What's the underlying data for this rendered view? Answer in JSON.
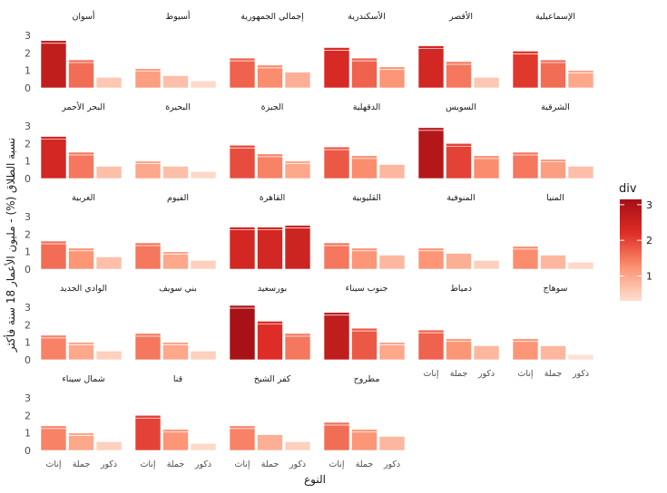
{
  "chart_data": {
    "type": "bar",
    "facet": true,
    "categories": [
      "إناث",
      "جملة",
      "ذكور"
    ],
    "ylabel": "نسبة الطلاق (%) - مليون الأعمار 18 سنة فأكثر",
    "xlabel": "النوع",
    "y_ticks": [
      "0",
      "1",
      "2",
      "3"
    ],
    "ylim": [
      0,
      3.1
    ],
    "legend": {
      "title": "div",
      "ticks": [
        "1",
        "2",
        "3"
      ],
      "range": [
        0.3,
        3.15
      ],
      "colors": [
        "#fee0d2",
        "#fc9272",
        "#de2d26",
        "#a50f15"
      ],
      "position": "right"
    },
    "panels": [
      {
        "name": "أسوان",
        "values": [
          2.7,
          1.6,
          0.6
        ]
      },
      {
        "name": "أسيوط",
        "values": [
          1.1,
          0.7,
          0.4
        ]
      },
      {
        "name": "إجمالي الجمهورية",
        "values": [
          1.7,
          1.3,
          0.9
        ]
      },
      {
        "name": "الأسكندرية",
        "values": [
          2.3,
          1.7,
          1.2
        ]
      },
      {
        "name": "الأقصر",
        "values": [
          2.4,
          1.5,
          0.6
        ]
      },
      {
        "name": "الإسماعيلية",
        "values": [
          2.1,
          1.6,
          1.0
        ]
      },
      {
        "name": "البحر الأحمر",
        "values": [
          2.4,
          1.5,
          0.7
        ]
      },
      {
        "name": "البحيرة",
        "values": [
          1.0,
          0.7,
          0.4
        ]
      },
      {
        "name": "الجيزة",
        "values": [
          1.9,
          1.4,
          1.0
        ]
      },
      {
        "name": "الدقهلية",
        "values": [
          1.8,
          1.3,
          0.8
        ]
      },
      {
        "name": "السويس",
        "values": [
          2.9,
          2.0,
          1.3
        ]
      },
      {
        "name": "الشرقية",
        "values": [
          1.5,
          1.1,
          0.7
        ]
      },
      {
        "name": "الغربية",
        "values": [
          1.6,
          1.2,
          0.7
        ]
      },
      {
        "name": "الفيوم",
        "values": [
          1.5,
          1.0,
          0.5
        ]
      },
      {
        "name": "القاهرة",
        "values": [
          2.4,
          2.4,
          2.5
        ]
      },
      {
        "name": "القليوبية",
        "values": [
          1.5,
          1.2,
          0.8
        ]
      },
      {
        "name": "المنوفية",
        "values": [
          1.2,
          0.9,
          0.5
        ]
      },
      {
        "name": "المنيا",
        "values": [
          1.3,
          0.8,
          0.4
        ]
      },
      {
        "name": "الوادي الجديد",
        "values": [
          1.4,
          1.0,
          0.5
        ]
      },
      {
        "name": "بني سويف",
        "values": [
          1.5,
          1.0,
          0.5
        ]
      },
      {
        "name": "بورسعيد",
        "values": [
          3.1,
          2.2,
          1.5
        ]
      },
      {
        "name": "جنوب سيناء",
        "values": [
          2.7,
          1.8,
          1.0
        ]
      },
      {
        "name": "دمياط",
        "values": [
          1.7,
          1.2,
          0.8
        ]
      },
      {
        "name": "سوهاج",
        "values": [
          1.2,
          0.8,
          0.3
        ]
      },
      {
        "name": "شمال سيناء",
        "values": [
          1.4,
          1.0,
          0.5
        ]
      },
      {
        "name": "قنا",
        "values": [
          2.0,
          1.2,
          0.4
        ]
      },
      {
        "name": "كفر الشيخ",
        "values": [
          1.4,
          0.9,
          0.5
        ]
      },
      {
        "name": "مطروح",
        "values": [
          1.6,
          1.2,
          0.8
        ]
      }
    ]
  }
}
